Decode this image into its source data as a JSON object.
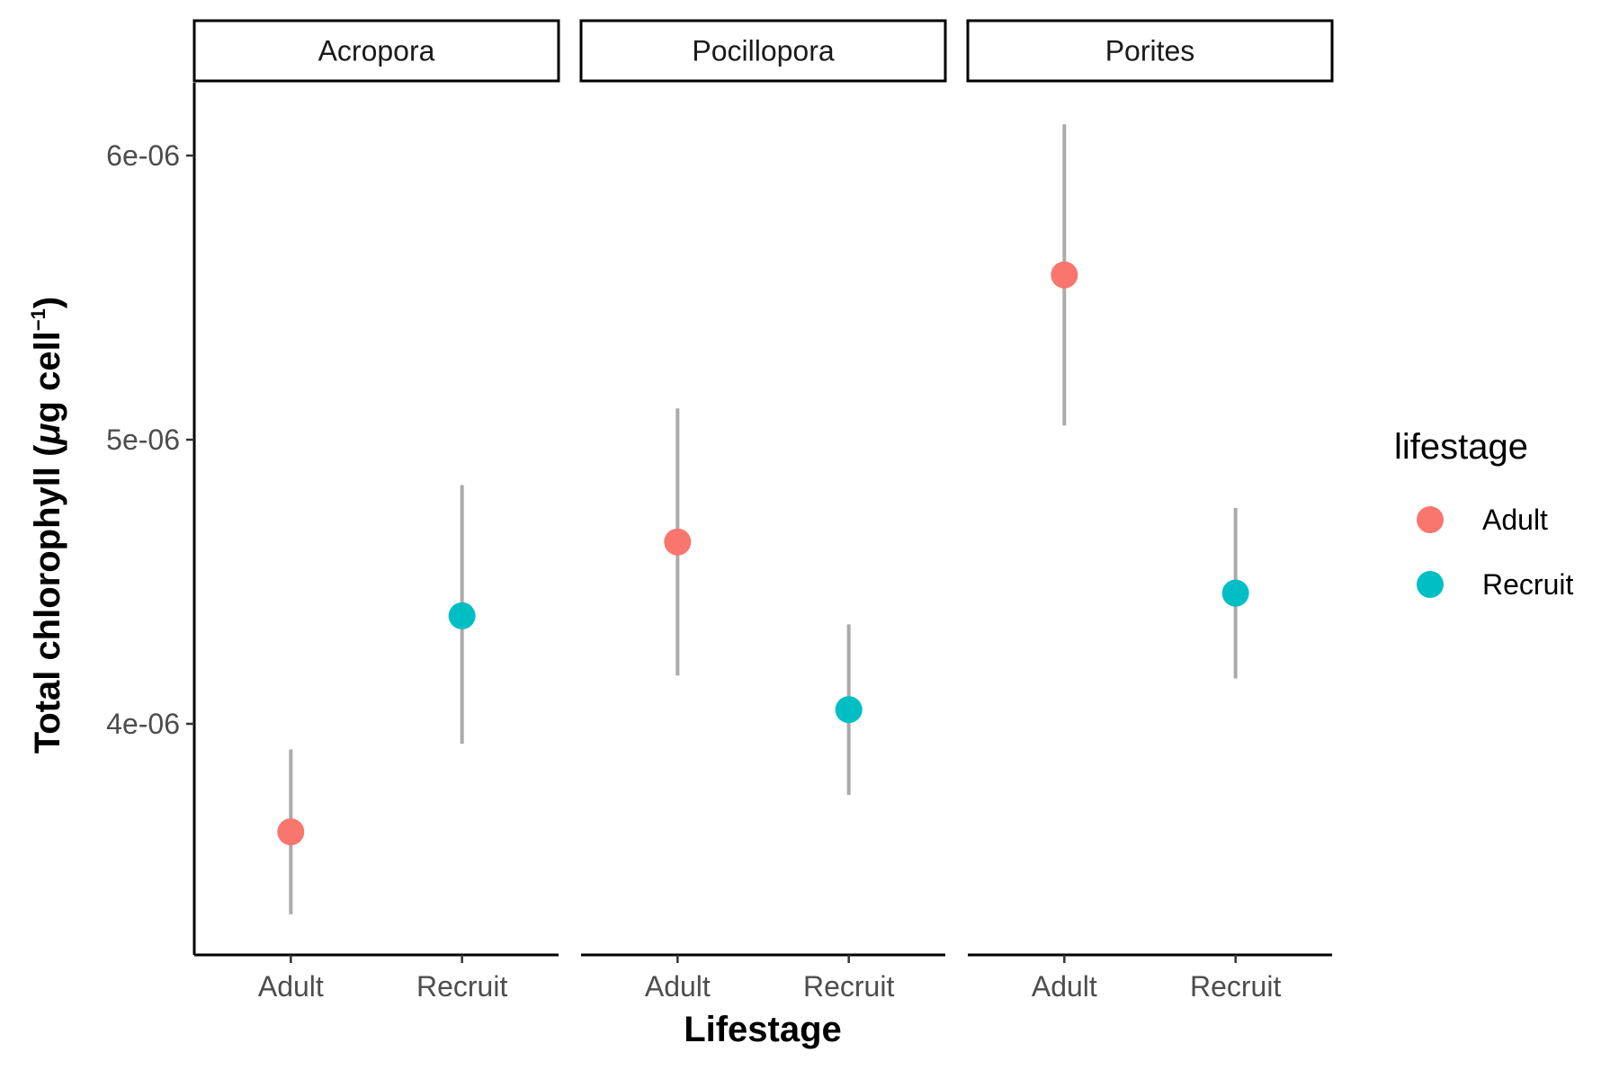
{
  "chart_data": {
    "type": "scatter",
    "subtype": "point-range faceted",
    "facet_variable": "genus",
    "facets": [
      "Acropora",
      "Pocillopora",
      "Porites"
    ],
    "categories": [
      "Adult",
      "Recruit"
    ],
    "xlabel": "Lifestage",
    "ylabel": {
      "prefix": "Total chlorophyll (",
      "mu": "μ",
      "unit": "g cell",
      "superscript": "−1",
      "suffix": ")"
    },
    "y_ticks": [
      {
        "value": 4e-06,
        "label": "4e-06"
      },
      {
        "value": 5e-06,
        "label": "5e-06"
      },
      {
        "value": 6e-06,
        "label": "6e-06"
      }
    ],
    "ylim": [
      3.2e-06,
      6.25e-06
    ],
    "grid": false,
    "legend": {
      "title": "lifestage",
      "position": "right",
      "entries": [
        {
          "label": "Adult",
          "color": "#F8766D"
        },
        {
          "label": "Recruit",
          "color": "#00BFC4"
        }
      ]
    },
    "series": [
      {
        "name": "Adult",
        "color": "#F8766D",
        "points": [
          {
            "facet": "Acropora",
            "category": "Adult",
            "y": 3.62e-06,
            "ymin": 3.33e-06,
            "ymax": 3.91e-06
          },
          {
            "facet": "Pocillopora",
            "category": "Adult",
            "y": 4.64e-06,
            "ymin": 4.17e-06,
            "ymax": 5.11e-06
          },
          {
            "facet": "Porites",
            "category": "Adult",
            "y": 5.58e-06,
            "ymin": 5.05e-06,
            "ymax": 6.11e-06
          }
        ]
      },
      {
        "name": "Recruit",
        "color": "#00BFC4",
        "points": [
          {
            "facet": "Acropora",
            "category": "Recruit",
            "y": 4.38e-06,
            "ymin": 3.93e-06,
            "ymax": 4.84e-06
          },
          {
            "facet": "Pocillopora",
            "category": "Recruit",
            "y": 4.05e-06,
            "ymin": 3.75e-06,
            "ymax": 4.35e-06
          },
          {
            "facet": "Porites",
            "category": "Recruit",
            "y": 4.46e-06,
            "ymin": 4.16e-06,
            "ymax": 4.76e-06
          }
        ]
      }
    ],
    "errorbar_color": "#aaaaaa"
  }
}
